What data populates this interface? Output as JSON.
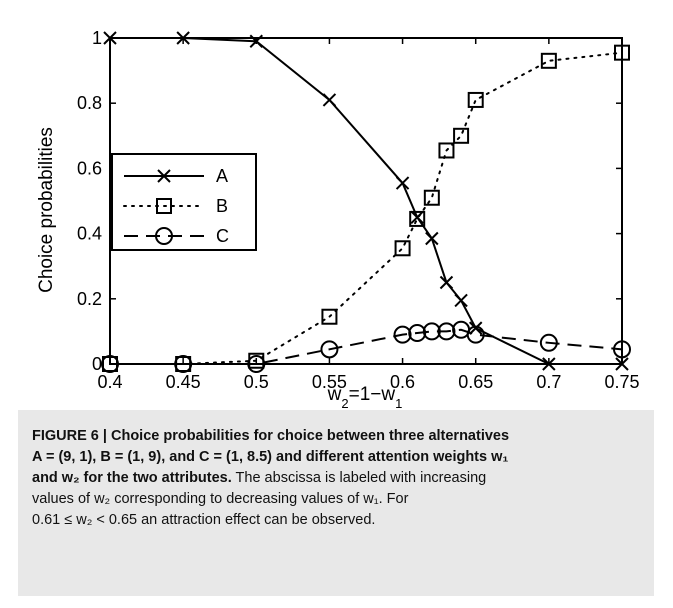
{
  "chart_data": {
    "type": "line",
    "xlabel": "w₂=1−w₁",
    "xlabel_parts": {
      "w": "w",
      "sub2": "2",
      "mid": "=1−w",
      "sub1": "1"
    },
    "ylabel": "Choice probabilities",
    "xlim": [
      0.4,
      0.75
    ],
    "ylim": [
      0,
      1
    ],
    "xticks": [
      0.4,
      0.45,
      0.5,
      0.55,
      0.6,
      0.65,
      0.7,
      0.75
    ],
    "xtick_labels": [
      "0.4",
      "0.45",
      "0.5",
      "0.55",
      "0.6",
      "0.65",
      "0.7",
      "0.75"
    ],
    "yticks": [
      0,
      0.2,
      0.4,
      0.6,
      0.8,
      1
    ],
    "ytick_labels": [
      "0",
      "0.2",
      "0.4",
      "0.6",
      "0.8",
      "1"
    ],
    "grid": false,
    "legend_placement": "center-left",
    "series": [
      {
        "name": "A",
        "marker": "x",
        "style": "solid",
        "x": [
          0.4,
          0.45,
          0.5,
          0.55,
          0.6,
          0.61,
          0.62,
          0.63,
          0.64,
          0.65,
          0.7,
          0.75
        ],
        "y": [
          1.0,
          1.0,
          0.99,
          0.81,
          0.555,
          0.45,
          0.385,
          0.25,
          0.195,
          0.11,
          0.0,
          0.0
        ]
      },
      {
        "name": "B",
        "marker": "square",
        "style": "dotted",
        "x": [
          0.4,
          0.45,
          0.5,
          0.55,
          0.6,
          0.61,
          0.62,
          0.63,
          0.64,
          0.65,
          0.7,
          0.75
        ],
        "y": [
          0.0,
          0.0,
          0.01,
          0.145,
          0.355,
          0.445,
          0.51,
          0.655,
          0.7,
          0.81,
          0.93,
          0.955
        ]
      },
      {
        "name": "C",
        "marker": "circle",
        "style": "dashed",
        "x": [
          0.4,
          0.45,
          0.5,
          0.55,
          0.6,
          0.61,
          0.62,
          0.63,
          0.64,
          0.65,
          0.7,
          0.75
        ],
        "y": [
          0.0,
          0.0,
          0.0,
          0.045,
          0.09,
          0.095,
          0.1,
          0.1,
          0.105,
          0.09,
          0.065,
          0.045
        ]
      }
    ]
  },
  "caption": {
    "label": "FIGURE 6 | Choice probabilities for choice between three alternatives",
    "line2": "A = (9, 1), B = (1, 9), and C = (1, 8.5) and different attention weights w₁",
    "line3_bold": "and w₂ for the two attributes.",
    "line3_rest": " The abscissa is labeled with increasing",
    "line4": "values of w₂ corresponding to decreasing values of w₁. For",
    "line5": "0.61 ≤ w₂ < 0.65 an attraction effect can be observed."
  },
  "colors": {
    "line": "#000000",
    "caption_bg": "#e8e8e8"
  }
}
